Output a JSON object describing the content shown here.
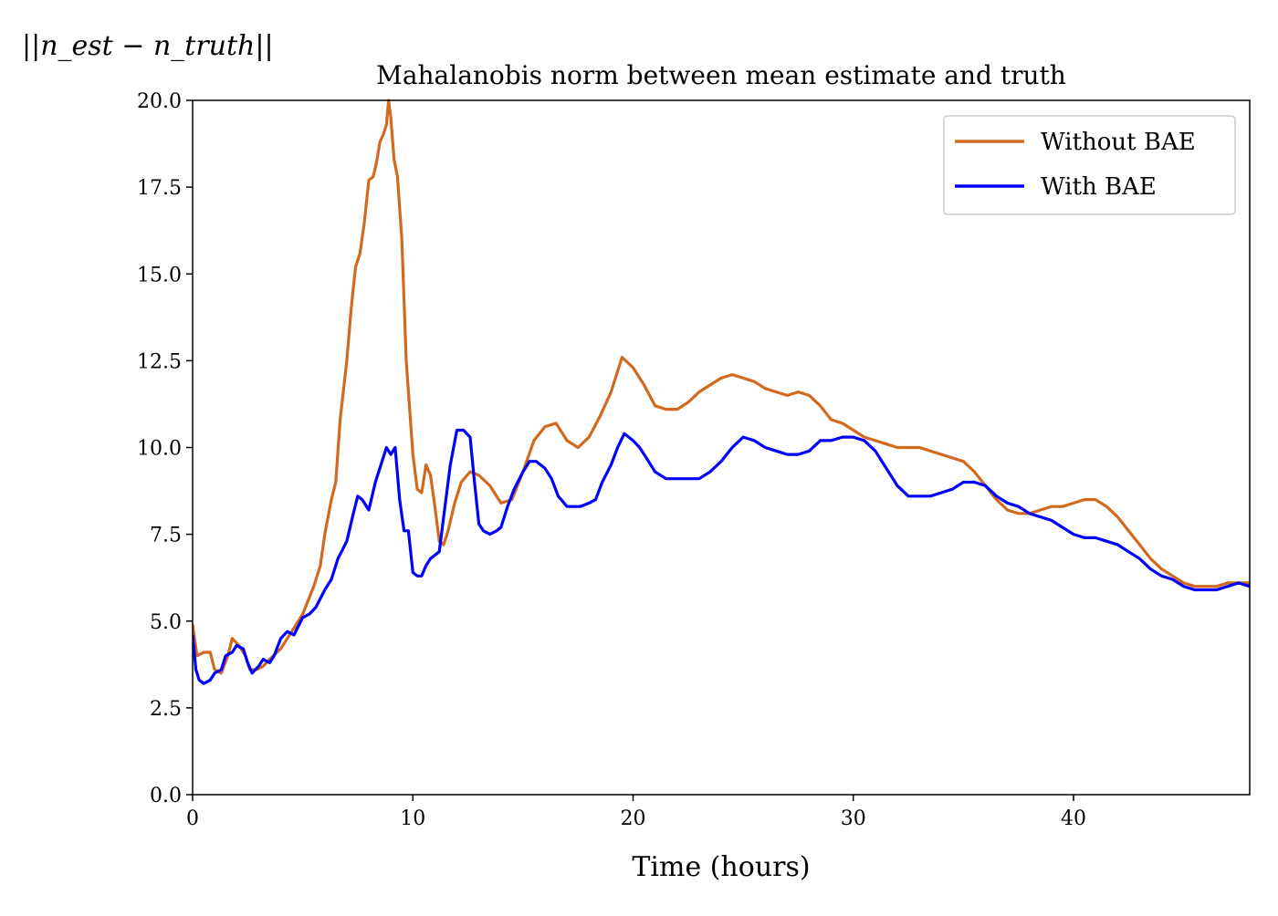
{
  "chart_data": {
    "type": "line",
    "title": "Mahalanobis norm between mean estimate and truth",
    "xlabel": "Time (hours)",
    "ylabel": "||n_est − n_truth||",
    "xlim": [
      0,
      48
    ],
    "ylim": [
      0,
      20
    ],
    "xticks": [
      0,
      10,
      20,
      30,
      40
    ],
    "xtick_labels": [
      "0",
      "10",
      "20",
      "30",
      "40"
    ],
    "yticks": [
      0,
      2.5,
      5,
      7.5,
      10,
      12.5,
      15,
      17.5,
      20
    ],
    "ytick_labels": [
      "0.0",
      "2.5",
      "5.0",
      "7.5",
      "10.0",
      "12.5",
      "15.0",
      "17.5",
      "20.0"
    ],
    "grid": false,
    "legend_position": "top-right",
    "series": [
      {
        "name": "Without BAE",
        "color": "#d2691e",
        "points": [
          [
            0,
            4.9
          ],
          [
            0.2,
            4.0
          ],
          [
            0.5,
            4.1
          ],
          [
            0.8,
            4.1
          ],
          [
            1.0,
            3.6
          ],
          [
            1.3,
            3.5
          ],
          [
            1.6,
            4.0
          ],
          [
            1.8,
            4.5
          ],
          [
            2.1,
            4.3
          ],
          [
            2.4,
            4.0
          ],
          [
            2.6,
            3.6
          ],
          [
            2.9,
            3.6
          ],
          [
            3.2,
            3.7
          ],
          [
            3.5,
            3.9
          ],
          [
            4.0,
            4.2
          ],
          [
            4.5,
            4.7
          ],
          [
            5.0,
            5.2
          ],
          [
            5.5,
            6.0
          ],
          [
            5.8,
            6.6
          ],
          [
            6.0,
            7.5
          ],
          [
            6.3,
            8.5
          ],
          [
            6.5,
            9.0
          ],
          [
            6.7,
            10.8
          ],
          [
            7.0,
            12.5
          ],
          [
            7.2,
            14.0
          ],
          [
            7.4,
            15.2
          ],
          [
            7.6,
            15.6
          ],
          [
            7.8,
            16.5
          ],
          [
            8.0,
            17.7
          ],
          [
            8.2,
            17.8
          ],
          [
            8.35,
            18.2
          ],
          [
            8.5,
            18.8
          ],
          [
            8.65,
            19.0
          ],
          [
            8.8,
            19.3
          ],
          [
            8.9,
            20.0
          ],
          [
            9.0,
            19.5
          ],
          [
            9.15,
            18.3
          ],
          [
            9.3,
            17.8
          ],
          [
            9.5,
            16.0
          ],
          [
            9.7,
            12.5
          ],
          [
            10.0,
            9.8
          ],
          [
            10.2,
            8.8
          ],
          [
            10.4,
            8.7
          ],
          [
            10.6,
            9.5
          ],
          [
            10.8,
            9.2
          ],
          [
            11.0,
            8.3
          ],
          [
            11.2,
            7.3
          ],
          [
            11.4,
            7.2
          ],
          [
            11.6,
            7.6
          ],
          [
            11.9,
            8.4
          ],
          [
            12.2,
            9.0
          ],
          [
            12.6,
            9.3
          ],
          [
            13.0,
            9.2
          ],
          [
            13.5,
            8.9
          ],
          [
            14.0,
            8.4
          ],
          [
            14.5,
            8.5
          ],
          [
            15.0,
            9.3
          ],
          [
            15.5,
            10.2
          ],
          [
            16.0,
            10.6
          ],
          [
            16.5,
            10.7
          ],
          [
            17.0,
            10.2
          ],
          [
            17.5,
            10.0
          ],
          [
            18.0,
            10.3
          ],
          [
            18.5,
            10.9
          ],
          [
            19.0,
            11.6
          ],
          [
            19.5,
            12.6
          ],
          [
            20.0,
            12.3
          ],
          [
            20.5,
            11.8
          ],
          [
            21.0,
            11.2
          ],
          [
            21.5,
            11.1
          ],
          [
            22.0,
            11.1
          ],
          [
            22.5,
            11.3
          ],
          [
            23.0,
            11.6
          ],
          [
            23.5,
            11.8
          ],
          [
            24.0,
            12.0
          ],
          [
            24.5,
            12.1
          ],
          [
            25.0,
            12.0
          ],
          [
            25.5,
            11.9
          ],
          [
            26.0,
            11.7
          ],
          [
            26.5,
            11.6
          ],
          [
            27.0,
            11.5
          ],
          [
            27.5,
            11.6
          ],
          [
            28.0,
            11.5
          ],
          [
            28.5,
            11.2
          ],
          [
            29.0,
            10.8
          ],
          [
            29.5,
            10.7
          ],
          [
            30.0,
            10.5
          ],
          [
            30.5,
            10.3
          ],
          [
            31.0,
            10.2
          ],
          [
            31.5,
            10.1
          ],
          [
            32.0,
            10.0
          ],
          [
            33.0,
            10.0
          ],
          [
            34.0,
            9.8
          ],
          [
            35.0,
            9.6
          ],
          [
            35.5,
            9.3
          ],
          [
            36.0,
            8.9
          ],
          [
            36.5,
            8.5
          ],
          [
            37.0,
            8.2
          ],
          [
            37.5,
            8.1
          ],
          [
            38.0,
            8.1
          ],
          [
            38.5,
            8.2
          ],
          [
            39.0,
            8.3
          ],
          [
            39.5,
            8.3
          ],
          [
            40.0,
            8.4
          ],
          [
            40.5,
            8.5
          ],
          [
            41.0,
            8.5
          ],
          [
            41.5,
            8.3
          ],
          [
            42.0,
            8.0
          ],
          [
            42.5,
            7.6
          ],
          [
            43.0,
            7.2
          ],
          [
            43.5,
            6.8
          ],
          [
            44.0,
            6.5
          ],
          [
            44.5,
            6.3
          ],
          [
            45.0,
            6.1
          ],
          [
            45.5,
            6.0
          ],
          [
            46.0,
            6.0
          ],
          [
            46.5,
            6.0
          ],
          [
            47.0,
            6.1
          ],
          [
            47.5,
            6.1
          ],
          [
            48.0,
            6.1
          ]
        ]
      },
      {
        "name": "With BAE",
        "color": "#0000ff",
        "points": [
          [
            0,
            4.6
          ],
          [
            0.15,
            3.6
          ],
          [
            0.3,
            3.3
          ],
          [
            0.5,
            3.2
          ],
          [
            0.8,
            3.3
          ],
          [
            1.0,
            3.5
          ],
          [
            1.3,
            3.6
          ],
          [
            1.5,
            4.0
          ],
          [
            1.8,
            4.1
          ],
          [
            2.0,
            4.3
          ],
          [
            2.3,
            4.2
          ],
          [
            2.5,
            3.8
          ],
          [
            2.7,
            3.5
          ],
          [
            3.0,
            3.7
          ],
          [
            3.2,
            3.9
          ],
          [
            3.5,
            3.8
          ],
          [
            3.7,
            4.0
          ],
          [
            4.0,
            4.5
          ],
          [
            4.3,
            4.7
          ],
          [
            4.6,
            4.6
          ],
          [
            5.0,
            5.1
          ],
          [
            5.3,
            5.2
          ],
          [
            5.6,
            5.4
          ],
          [
            6.0,
            5.9
          ],
          [
            6.3,
            6.2
          ],
          [
            6.6,
            6.8
          ],
          [
            7.0,
            7.3
          ],
          [
            7.3,
            8.1
          ],
          [
            7.5,
            8.6
          ],
          [
            7.7,
            8.5
          ],
          [
            8.0,
            8.2
          ],
          [
            8.3,
            9.0
          ],
          [
            8.5,
            9.4
          ],
          [
            8.8,
            10.0
          ],
          [
            9.0,
            9.8
          ],
          [
            9.2,
            10.0
          ],
          [
            9.4,
            8.5
          ],
          [
            9.6,
            7.6
          ],
          [
            9.8,
            7.6
          ],
          [
            10.0,
            6.4
          ],
          [
            10.2,
            6.3
          ],
          [
            10.4,
            6.3
          ],
          [
            10.6,
            6.6
          ],
          [
            10.8,
            6.8
          ],
          [
            11.0,
            6.9
          ],
          [
            11.2,
            7.0
          ],
          [
            11.4,
            8.0
          ],
          [
            11.7,
            9.5
          ],
          [
            12.0,
            10.5
          ],
          [
            12.3,
            10.5
          ],
          [
            12.6,
            10.3
          ],
          [
            12.8,
            9.0
          ],
          [
            13.0,
            7.8
          ],
          [
            13.2,
            7.6
          ],
          [
            13.5,
            7.5
          ],
          [
            13.8,
            7.6
          ],
          [
            14.0,
            7.7
          ],
          [
            14.3,
            8.3
          ],
          [
            14.6,
            8.8
          ],
          [
            15.0,
            9.3
          ],
          [
            15.3,
            9.6
          ],
          [
            15.6,
            9.6
          ],
          [
            16.0,
            9.4
          ],
          [
            16.3,
            9.1
          ],
          [
            16.6,
            8.6
          ],
          [
            17.0,
            8.3
          ],
          [
            17.3,
            8.3
          ],
          [
            17.6,
            8.3
          ],
          [
            18.0,
            8.4
          ],
          [
            18.3,
            8.5
          ],
          [
            18.6,
            9.0
          ],
          [
            19.0,
            9.5
          ],
          [
            19.3,
            10.0
          ],
          [
            19.6,
            10.4
          ],
          [
            20.0,
            10.2
          ],
          [
            20.3,
            10.0
          ],
          [
            20.6,
            9.7
          ],
          [
            21.0,
            9.3
          ],
          [
            21.5,
            9.1
          ],
          [
            22.0,
            9.1
          ],
          [
            22.5,
            9.1
          ],
          [
            23.0,
            9.1
          ],
          [
            23.5,
            9.3
          ],
          [
            24.0,
            9.6
          ],
          [
            24.5,
            10.0
          ],
          [
            25.0,
            10.3
          ],
          [
            25.5,
            10.2
          ],
          [
            26.0,
            10.0
          ],
          [
            26.5,
            9.9
          ],
          [
            27.0,
            9.8
          ],
          [
            27.5,
            9.8
          ],
          [
            28.0,
            9.9
          ],
          [
            28.5,
            10.2
          ],
          [
            29.0,
            10.2
          ],
          [
            29.5,
            10.3
          ],
          [
            30.0,
            10.3
          ],
          [
            30.5,
            10.2
          ],
          [
            31.0,
            9.9
          ],
          [
            31.5,
            9.4
          ],
          [
            32.0,
            8.9
          ],
          [
            32.5,
            8.6
          ],
          [
            33.0,
            8.6
          ],
          [
            33.5,
            8.6
          ],
          [
            34.0,
            8.7
          ],
          [
            34.5,
            8.8
          ],
          [
            35.0,
            9.0
          ],
          [
            35.5,
            9.0
          ],
          [
            36.0,
            8.9
          ],
          [
            36.5,
            8.6
          ],
          [
            37.0,
            8.4
          ],
          [
            37.5,
            8.3
          ],
          [
            38.0,
            8.1
          ],
          [
            38.5,
            8.0
          ],
          [
            39.0,
            7.9
          ],
          [
            39.5,
            7.7
          ],
          [
            40.0,
            7.5
          ],
          [
            40.5,
            7.4
          ],
          [
            41.0,
            7.4
          ],
          [
            41.5,
            7.3
          ],
          [
            42.0,
            7.2
          ],
          [
            42.5,
            7.0
          ],
          [
            43.0,
            6.8
          ],
          [
            43.5,
            6.5
          ],
          [
            44.0,
            6.3
          ],
          [
            44.5,
            6.2
          ],
          [
            45.0,
            6.0
          ],
          [
            45.5,
            5.9
          ],
          [
            46.0,
            5.9
          ],
          [
            46.5,
            5.9
          ],
          [
            47.0,
            6.0
          ],
          [
            47.5,
            6.1
          ],
          [
            48.0,
            6.0
          ]
        ]
      }
    ]
  }
}
